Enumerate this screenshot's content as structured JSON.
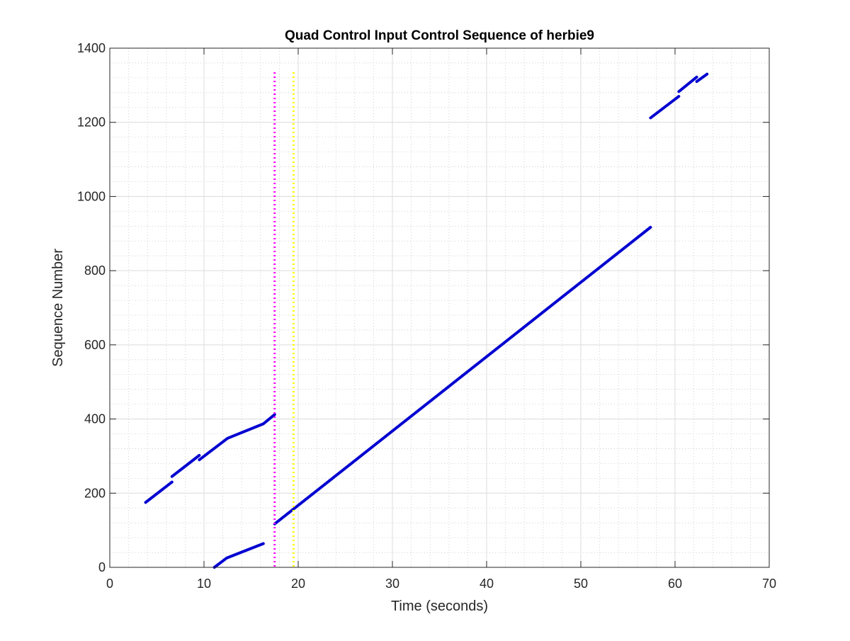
{
  "chart_data": {
    "type": "line",
    "title": "Quad Control Input Control Sequence of herbie9",
    "xlabel": "Time (seconds)",
    "ylabel": "Sequence Number",
    "xlim": [
      0,
      70
    ],
    "ylim": [
      0,
      1400
    ],
    "xticks": [
      0,
      10,
      20,
      30,
      40,
      50,
      60,
      70
    ],
    "yticks": [
      0,
      200,
      400,
      600,
      800,
      1000,
      1200,
      1400
    ],
    "grid": "major and minor",
    "legend": "none",
    "series": [
      {
        "color": "#0000d0",
        "segments": [
          [
            [
              3.8,
              175
            ],
            [
              6.6,
              230
            ]
          ],
          [
            [
              6.6,
              245
            ],
            [
              9.5,
              302
            ]
          ],
          [
            [
              9.5,
              290
            ],
            [
              12.5,
              348
            ],
            [
              16.3,
              387
            ],
            [
              17.5,
              412
            ]
          ],
          [
            [
              11.1,
              0
            ],
            [
              12.4,
              25
            ],
            [
              16.3,
              64
            ]
          ],
          [
            [
              17.5,
              117
            ],
            [
              57.4,
              917
            ]
          ],
          [
            [
              57.4,
              1212
            ],
            [
              60.4,
              1270
            ]
          ],
          [
            [
              60.4,
              1283
            ],
            [
              62.3,
              1322
            ]
          ],
          [
            [
              62.3,
              1310
            ],
            [
              63.4,
              1330
            ]
          ]
        ]
      }
    ],
    "vertical_lines": [
      {
        "x": 17.5,
        "y_top": 1335,
        "color": "#ff00ff",
        "style": "dotted"
      },
      {
        "x": 19.5,
        "y_top": 1335,
        "color": "#ffff00",
        "style": "dotted"
      }
    ]
  }
}
